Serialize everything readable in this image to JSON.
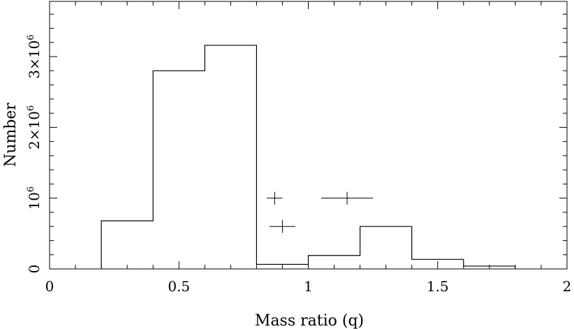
{
  "chart_data": {
    "type": "bar",
    "histogram": true,
    "title": "",
    "xlabel": "Mass ratio (q)",
    "ylabel": "Number",
    "xlim": [
      0,
      2
    ],
    "ylim": [
      0,
      3800000
    ],
    "grid": false,
    "bins": [
      {
        "x0": 0.2,
        "x1": 0.4,
        "value": 680000
      },
      {
        "x0": 0.4,
        "x1": 0.6,
        "value": 2800000
      },
      {
        "x0": 0.6,
        "x1": 0.8,
        "value": 3160000
      },
      {
        "x0": 0.8,
        "x1": 1.0,
        "value": 65000
      },
      {
        "x0": 1.0,
        "x1": 1.2,
        "value": 190000
      },
      {
        "x0": 1.2,
        "x1": 1.4,
        "value": 600000
      },
      {
        "x0": 1.4,
        "x1": 1.6,
        "value": 135000
      },
      {
        "x0": 1.6,
        "x1": 1.8,
        "value": 40000
      }
    ],
    "error_points": [
      {
        "x": 0.87,
        "y": 1000000,
        "xerr": 0.03,
        "yerr": 90000
      },
      {
        "x": 0.9,
        "y": 600000,
        "xerr": 0.05,
        "yerr": 90000
      },
      {
        "x": 1.15,
        "y": 1000000,
        "xerr": 0.1,
        "yerr": 90000
      }
    ],
    "x_ticks": [
      {
        "value": 0,
        "label": "0"
      },
      {
        "value": 0.5,
        "label": "0.5"
      },
      {
        "value": 1,
        "label": "1"
      },
      {
        "value": 1.5,
        "label": "1.5"
      },
      {
        "value": 2,
        "label": "2"
      }
    ],
    "y_ticks": [
      {
        "value": 0,
        "label_base": "0",
        "label_exp": ""
      },
      {
        "value": 1000000,
        "label_base": "10",
        "label_exp": "6"
      },
      {
        "value": 2000000,
        "label_base": "2×10",
        "label_exp": "6"
      },
      {
        "value": 3000000,
        "label_base": "3×10",
        "label_exp": "6"
      }
    ],
    "x_minor_step": 0.1,
    "y_minor_step": 200000
  }
}
